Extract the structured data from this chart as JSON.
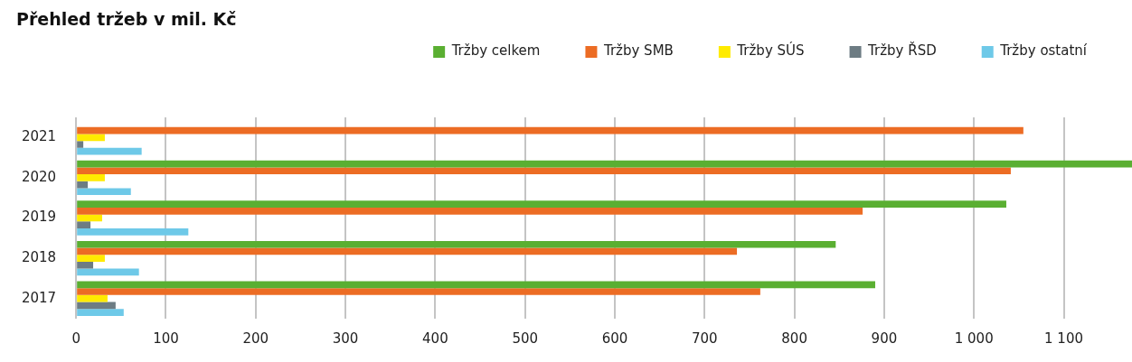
{
  "chart_data": {
    "type": "bar",
    "orientation": "horizontal",
    "title": "Přehled tržeb v mil. Kč",
    "categories": [
      "2021",
      "2020",
      "2019",
      "2018",
      "2017"
    ],
    "series": [
      {
        "name": "Tržby celkem",
        "color": "#5aaf32",
        "values": [
          null,
          1176,
          1036,
          846,
          890
        ]
      },
      {
        "name": "Tržby SMB",
        "color": "#ec6c24",
        "values": [
          1055,
          1041,
          876,
          736,
          762
        ]
      },
      {
        "name": "Tržby SÚS",
        "color": "#ffeb00",
        "values": [
          32,
          32,
          29,
          32,
          35
        ]
      },
      {
        "name": "Tržby ŘSD",
        "color": "#6d7c83",
        "values": [
          8,
          13,
          16,
          19,
          44
        ]
      },
      {
        "name": "Tržby ostatní",
        "color": "#6ec9e8",
        "values": [
          73,
          61,
          125,
          70,
          53
        ]
      }
    ],
    "xlim": [
      0,
      1176
    ],
    "xticks": [
      0,
      100,
      200,
      300,
      400,
      500,
      600,
      700,
      800,
      900,
      {
        "value": 1000,
        "label": "1 000"
      },
      {
        "value": 1100,
        "label": "1 100"
      }
    ],
    "grid": "x",
    "legend": "top right"
  }
}
